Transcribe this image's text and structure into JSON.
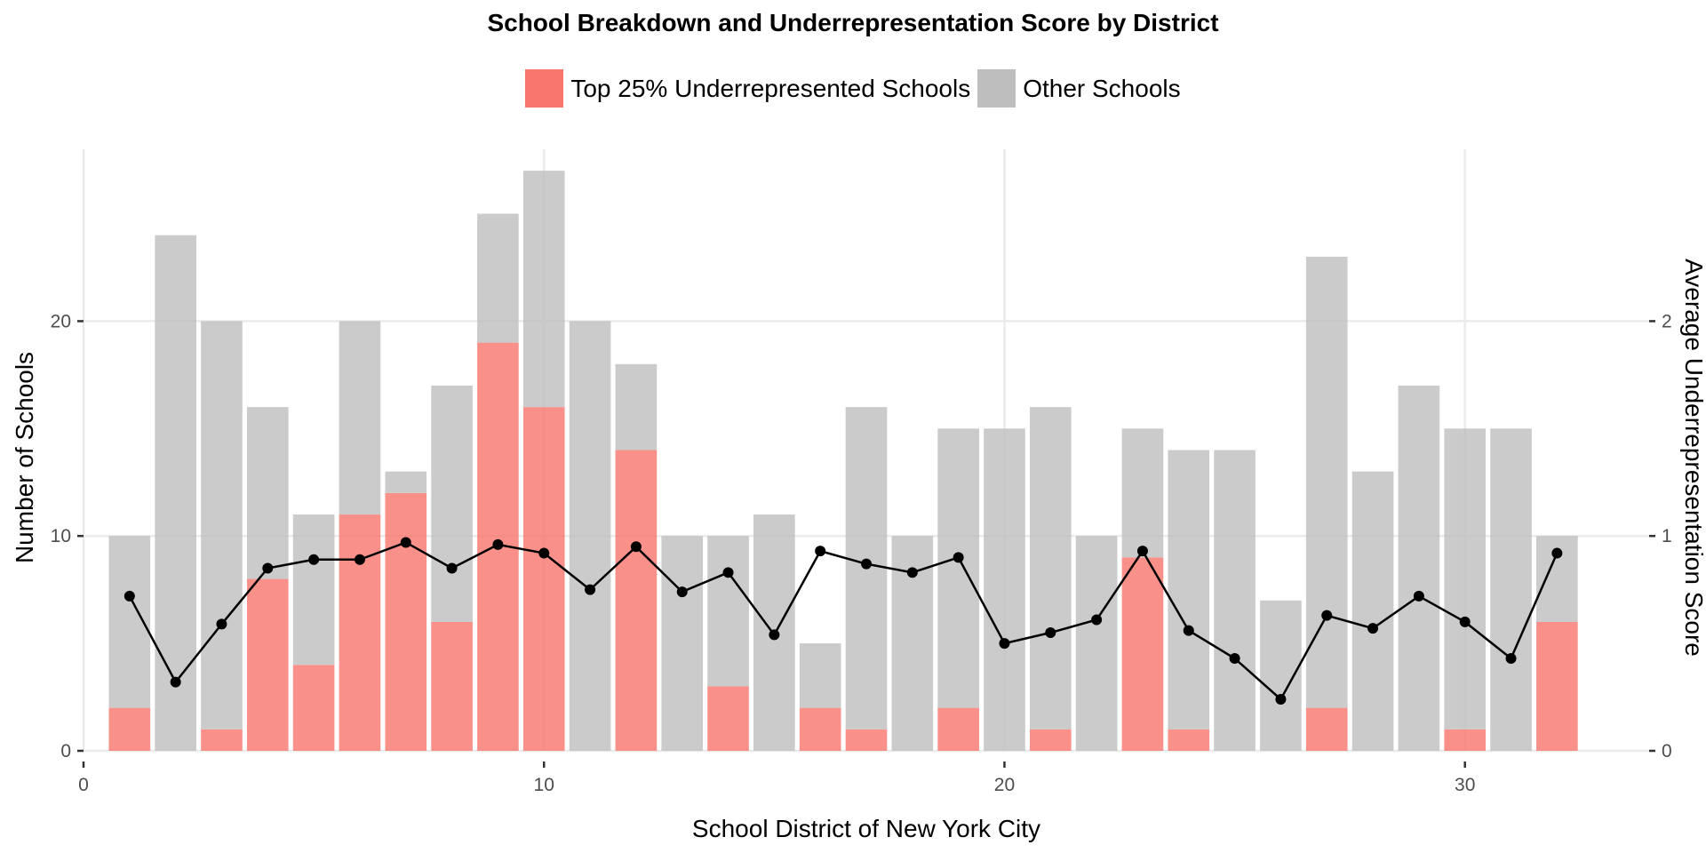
{
  "chart_data": {
    "type": "bar",
    "title": "School Breakdown and Underrepresentation Score by District",
    "xlabel": "School District of New York City",
    "ylabel": "Number of Schools",
    "y2label": "Average Underrepresentation Score",
    "xlim": [
      0,
      34
    ],
    "ylim": [
      0,
      28
    ],
    "y2lim": [
      0,
      2.8
    ],
    "x_ticks": [
      0,
      10,
      20,
      30
    ],
    "y_ticks": [
      0,
      10,
      20
    ],
    "y2_ticks": [
      0,
      1,
      2
    ],
    "grid": true,
    "legend_position": "top",
    "stacked": true,
    "categories": [
      1,
      2,
      3,
      4,
      5,
      6,
      7,
      8,
      9,
      10,
      11,
      12,
      13,
      14,
      15,
      16,
      17,
      18,
      19,
      20,
      21,
      22,
      23,
      24,
      25,
      26,
      27,
      28,
      29,
      30,
      31,
      32
    ],
    "series": [
      {
        "name": "Top 25% Underrepresented Schools",
        "color": "#f8766d",
        "values": [
          2,
          0,
          1,
          8,
          4,
          11,
          12,
          6,
          19,
          16,
          0,
          14,
          0,
          3,
          0,
          2,
          1,
          0,
          2,
          0,
          1,
          0,
          9,
          1,
          0,
          0,
          2,
          0,
          0,
          1,
          0,
          6
        ]
      },
      {
        "name": "Other Schools",
        "color": "#bebebe",
        "values": [
          8,
          24,
          19,
          8,
          7,
          9,
          1,
          11,
          6,
          11,
          20,
          4,
          10,
          7,
          11,
          3,
          15,
          10,
          13,
          15,
          15,
          10,
          6,
          13,
          14,
          7,
          21,
          13,
          17,
          14,
          15,
          4
        ]
      }
    ],
    "line": {
      "axis": "secondary",
      "color": "#000000",
      "values": [
        0.72,
        0.32,
        0.59,
        0.85,
        0.89,
        0.89,
        0.97,
        0.85,
        0.96,
        0.92,
        0.75,
        0.95,
        0.74,
        0.83,
        0.54,
        0.93,
        0.87,
        0.83,
        0.9,
        0.5,
        0.55,
        0.61,
        0.93,
        0.56,
        0.43,
        0.24,
        0.63,
        0.57,
        0.72,
        0.6,
        0.43,
        0.92
      ]
    }
  }
}
